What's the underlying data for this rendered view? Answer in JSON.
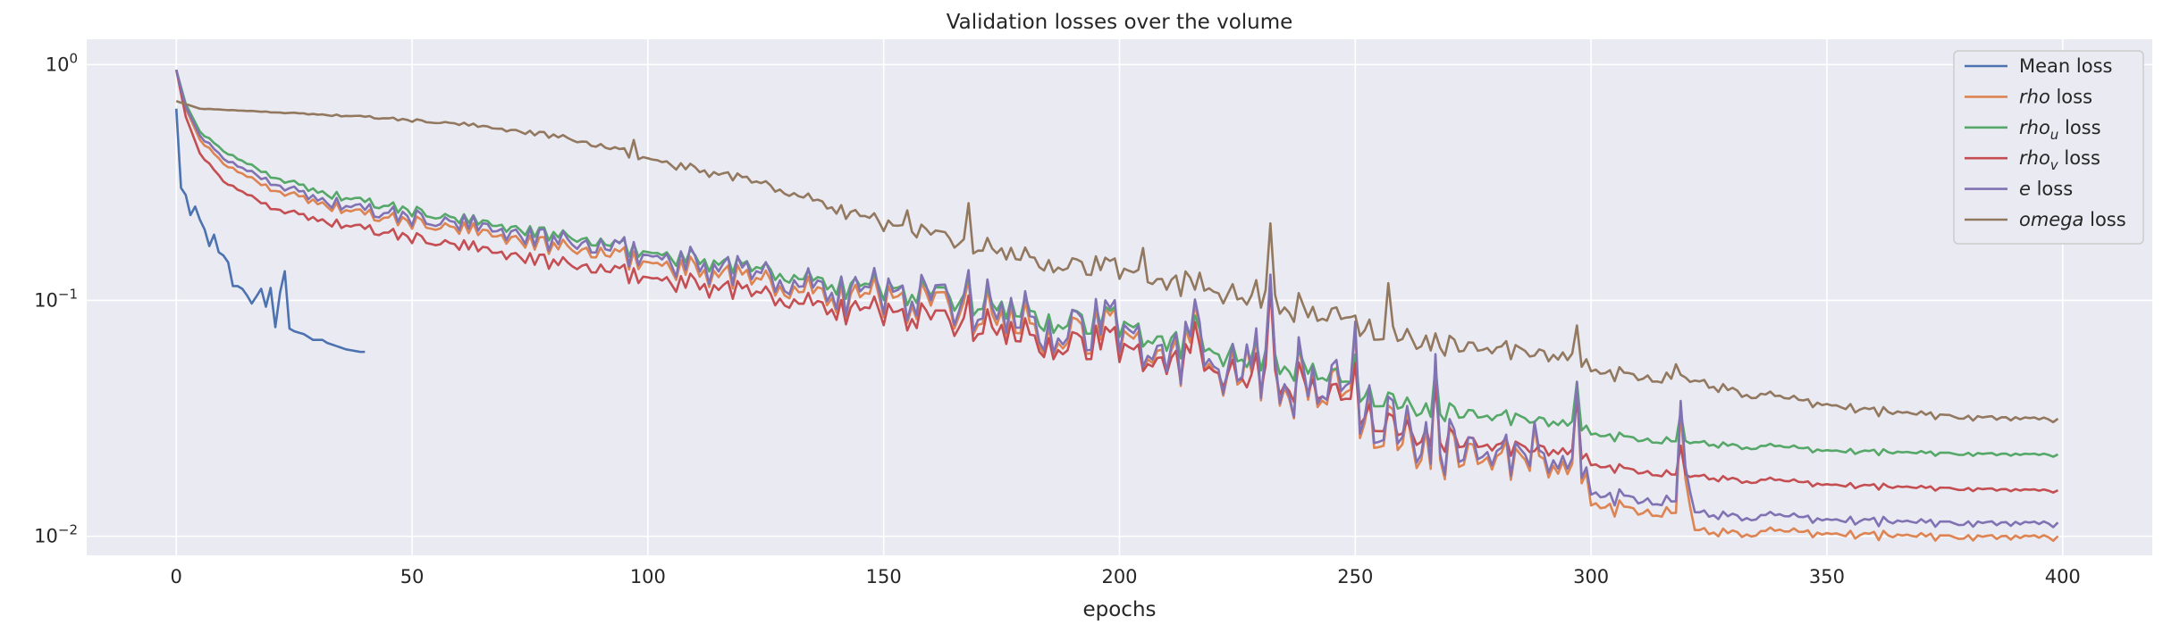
{
  "chart_data": {
    "type": "line",
    "title": "Validation losses over the volume",
    "xlabel": "epochs",
    "ylabel": "",
    "xlim": [
      -19,
      419
    ],
    "ylim": [
      0.0083,
      1.28
    ],
    "yscale": "log",
    "grid": true,
    "legend_position": "top-right",
    "xticks": [
      0,
      50,
      100,
      150,
      200,
      250,
      300,
      350,
      400
    ],
    "xtick_labels": [
      "0",
      "50",
      "100",
      "150",
      "200",
      "250",
      "300",
      "350",
      "400"
    ],
    "ytick_labels": [
      {
        "value": 1,
        "base": "10",
        "exp": "0"
      },
      {
        "value": 0.1,
        "base": "10",
        "exp": "−1"
      },
      {
        "value": 0.01,
        "base": "10",
        "exp": "−2"
      }
    ],
    "series": [
      {
        "name": "Mean loss",
        "color": "#4c72b0",
        "length": 41,
        "points": [
          [
            0,
            0.65
          ],
          [
            1,
            0.3
          ],
          [
            2,
            0.28
          ],
          [
            3,
            0.23
          ],
          [
            4,
            0.25
          ],
          [
            5,
            0.22
          ],
          [
            6,
            0.2
          ],
          [
            7,
            0.17
          ],
          [
            8,
            0.19
          ],
          [
            9,
            0.16
          ],
          [
            10,
            0.155
          ],
          [
            11,
            0.145
          ],
          [
            12,
            0.115
          ],
          [
            13,
            0.115
          ],
          [
            14,
            0.112
          ],
          [
            15,
            0.105
          ],
          [
            16,
            0.097
          ],
          [
            17,
            0.104
          ],
          [
            18,
            0.112
          ],
          [
            19,
            0.094
          ],
          [
            20,
            0.113
          ],
          [
            21,
            0.077
          ],
          [
            22,
            0.108
          ],
          [
            23,
            0.133
          ],
          [
            24,
            0.076
          ],
          [
            25,
            0.074
          ],
          [
            26,
            0.073
          ],
          [
            27,
            0.072
          ],
          [
            28,
            0.07
          ],
          [
            29,
            0.068
          ],
          [
            30,
            0.068
          ],
          [
            31,
            0.068
          ],
          [
            32,
            0.066
          ],
          [
            33,
            0.065
          ],
          [
            34,
            0.064
          ],
          [
            35,
            0.063
          ],
          [
            36,
            0.062
          ],
          [
            37,
            0.0615
          ],
          [
            38,
            0.061
          ],
          [
            39,
            0.0605
          ],
          [
            40,
            0.0605
          ]
        ]
      },
      {
        "name": "rho",
        "name_italic": "rho",
        "name_suffix": " loss",
        "color": "#dd8452",
        "points": [
          [
            0,
            0.95
          ],
          [
            2,
            0.65
          ],
          [
            5,
            0.48
          ],
          [
            10,
            0.38
          ],
          [
            20,
            0.3
          ],
          [
            30,
            0.26
          ],
          [
            40,
            0.23
          ],
          [
            60,
            0.2
          ],
          [
            80,
            0.17
          ],
          [
            100,
            0.145
          ],
          [
            120,
            0.125
          ],
          [
            140,
            0.108
          ],
          [
            160,
            0.095
          ],
          [
            180,
            0.082
          ],
          [
            200,
            0.072
          ],
          [
            220,
            0.057
          ],
          [
            240,
            0.044
          ],
          [
            260,
            0.026
          ],
          [
            280,
            0.021
          ],
          [
            299,
            0.018
          ],
          [
            300,
            0.0135
          ],
          [
            318,
            0.0125
          ],
          [
            319,
            0.022
          ],
          [
            322,
            0.0105
          ],
          [
            350,
            0.0102
          ],
          [
            399,
            0.0098
          ]
        ],
        "var_amp": [
          [
            0,
            0.0
          ],
          [
            30,
            0.06
          ],
          [
            100,
            0.12
          ],
          [
            160,
            0.32
          ],
          [
            200,
            0.38
          ],
          [
            260,
            0.45
          ],
          [
            300,
            0.1
          ],
          [
            320,
            0.06
          ],
          [
            400,
            0.04
          ]
        ],
        "spikes": [
          [
            168,
            1.4
          ],
          [
            216,
            1.9
          ],
          [
            227,
            1.6
          ],
          [
            232,
            2.9
          ],
          [
            250,
            1.7
          ],
          [
            267,
            1.8
          ],
          [
            288,
            1.5
          ],
          [
            297,
            2.2
          ],
          [
            319,
            1.5
          ]
        ]
      },
      {
        "name": "rho_u",
        "name_italic": "rho",
        "name_sub": "u",
        "name_suffix": " loss",
        "color": "#55a868",
        "points": [
          [
            0,
            0.95
          ],
          [
            2,
            0.68
          ],
          [
            5,
            0.52
          ],
          [
            10,
            0.43
          ],
          [
            20,
            0.34
          ],
          [
            30,
            0.29
          ],
          [
            40,
            0.26
          ],
          [
            60,
            0.22
          ],
          [
            80,
            0.19
          ],
          [
            100,
            0.16
          ],
          [
            120,
            0.14
          ],
          [
            140,
            0.12
          ],
          [
            160,
            0.105
          ],
          [
            180,
            0.092
          ],
          [
            200,
            0.08
          ],
          [
            220,
            0.064
          ],
          [
            240,
            0.052
          ],
          [
            250,
            0.041
          ],
          [
            260,
            0.036
          ],
          [
            280,
            0.032
          ],
          [
            299,
            0.029
          ],
          [
            300,
            0.027
          ],
          [
            320,
            0.025
          ],
          [
            350,
            0.023
          ],
          [
            399,
            0.022
          ]
        ],
        "var_amp": [
          [
            0,
            0.0
          ],
          [
            30,
            0.05
          ],
          [
            100,
            0.09
          ],
          [
            160,
            0.2
          ],
          [
            200,
            0.24
          ],
          [
            260,
            0.15
          ],
          [
            300,
            0.05
          ],
          [
            400,
            0.02
          ]
        ],
        "spikes": [
          [
            168,
            1.3
          ],
          [
            216,
            1.4
          ],
          [
            232,
            2.2
          ],
          [
            250,
            1.3
          ],
          [
            267,
            1.4
          ],
          [
            297,
            1.5
          ],
          [
            319,
            1.3
          ]
        ]
      },
      {
        "name": "rho_v",
        "name_italic": "rho",
        "name_sub": "v",
        "name_suffix": " loss",
        "color": "#c44e52",
        "points": [
          [
            0,
            0.95
          ],
          [
            2,
            0.6
          ],
          [
            5,
            0.42
          ],
          [
            10,
            0.32
          ],
          [
            20,
            0.25
          ],
          [
            30,
            0.22
          ],
          [
            40,
            0.2
          ],
          [
            60,
            0.17
          ],
          [
            80,
            0.145
          ],
          [
            100,
            0.125
          ],
          [
            120,
            0.11
          ],
          [
            140,
            0.095
          ],
          [
            160,
            0.083
          ],
          [
            180,
            0.073
          ],
          [
            200,
            0.064
          ],
          [
            220,
            0.054
          ],
          [
            240,
            0.044
          ],
          [
            250,
            0.034
          ],
          [
            260,
            0.028
          ],
          [
            280,
            0.024
          ],
          [
            299,
            0.022
          ],
          [
            300,
            0.02
          ],
          [
            320,
            0.018
          ],
          [
            350,
            0.0165
          ],
          [
            399,
            0.0155
          ]
        ],
        "var_amp": [
          [
            0,
            0.0
          ],
          [
            30,
            0.05
          ],
          [
            100,
            0.1
          ],
          [
            160,
            0.22
          ],
          [
            200,
            0.28
          ],
          [
            260,
            0.2
          ],
          [
            300,
            0.05
          ],
          [
            400,
            0.02
          ]
        ],
        "spikes": [
          [
            168,
            1.35
          ],
          [
            216,
            1.6
          ],
          [
            232,
            2.6
          ],
          [
            250,
            1.4
          ],
          [
            267,
            1.5
          ],
          [
            297,
            1.7
          ],
          [
            319,
            1.3
          ]
        ]
      },
      {
        "name": "e",
        "name_italic": "e",
        "name_suffix": " loss",
        "color": "#8172b3",
        "points": [
          [
            0,
            0.95
          ],
          [
            2,
            0.66
          ],
          [
            5,
            0.5
          ],
          [
            10,
            0.4
          ],
          [
            20,
            0.32
          ],
          [
            30,
            0.27
          ],
          [
            40,
            0.24
          ],
          [
            60,
            0.21
          ],
          [
            80,
            0.18
          ],
          [
            100,
            0.155
          ],
          [
            120,
            0.133
          ],
          [
            140,
            0.115
          ],
          [
            160,
            0.1
          ],
          [
            180,
            0.088
          ],
          [
            200,
            0.076
          ],
          [
            220,
            0.06
          ],
          [
            240,
            0.046
          ],
          [
            260,
            0.028
          ],
          [
            280,
            0.022
          ],
          [
            299,
            0.019
          ],
          [
            300,
            0.015
          ],
          [
            318,
            0.014
          ],
          [
            319,
            0.024
          ],
          [
            322,
            0.0125
          ],
          [
            350,
            0.0117
          ],
          [
            399,
            0.0112
          ]
        ],
        "var_amp": [
          [
            0,
            0.0
          ],
          [
            30,
            0.07
          ],
          [
            100,
            0.16
          ],
          [
            160,
            0.36
          ],
          [
            200,
            0.42
          ],
          [
            260,
            0.48
          ],
          [
            300,
            0.1
          ],
          [
            320,
            0.06
          ],
          [
            400,
            0.04
          ]
        ],
        "spikes": [
          [
            168,
            1.45
          ],
          [
            216,
            1.9
          ],
          [
            227,
            1.6
          ],
          [
            232,
            2.9
          ],
          [
            250,
            1.7
          ],
          [
            267,
            1.8
          ],
          [
            288,
            1.5
          ],
          [
            297,
            2.2
          ],
          [
            319,
            1.5
          ]
        ]
      },
      {
        "name": "omega",
        "name_italic": "omega",
        "name_suffix": " loss",
        "color": "#937860",
        "points": [
          [
            0,
            0.7
          ],
          [
            5,
            0.65
          ],
          [
            20,
            0.63
          ],
          [
            40,
            0.6
          ],
          [
            60,
            0.56
          ],
          [
            80,
            0.5
          ],
          [
            90,
            0.45
          ],
          [
            100,
            0.4
          ],
          [
            110,
            0.36
          ],
          [
            120,
            0.33
          ],
          [
            130,
            0.29
          ],
          [
            140,
            0.25
          ],
          [
            150,
            0.21
          ],
          [
            160,
            0.19
          ],
          [
            170,
            0.17
          ],
          [
            180,
            0.155
          ],
          [
            190,
            0.145
          ],
          [
            200,
            0.135
          ],
          [
            210,
            0.125
          ],
          [
            220,
            0.115
          ],
          [
            230,
            0.105
          ],
          [
            240,
            0.09
          ],
          [
            250,
            0.078
          ],
          [
            260,
            0.07
          ],
          [
            270,
            0.065
          ],
          [
            280,
            0.062
          ],
          [
            290,
            0.058
          ],
          [
            299,
            0.055
          ],
          [
            300,
            0.05
          ],
          [
            320,
            0.046
          ],
          [
            340,
            0.038
          ],
          [
            360,
            0.034
          ],
          [
            380,
            0.032
          ],
          [
            399,
            0.031
          ]
        ],
        "var_amp": [
          [
            0,
            0.0
          ],
          [
            60,
            0.02
          ],
          [
            120,
            0.06
          ],
          [
            160,
            0.12
          ],
          [
            220,
            0.18
          ],
          [
            260,
            0.16
          ],
          [
            300,
            0.08
          ],
          [
            400,
            0.03
          ]
        ],
        "spikes": [
          [
            97,
            1.12
          ],
          [
            155,
            1.3
          ],
          [
            168,
            1.5
          ],
          [
            205,
            1.45
          ],
          [
            232,
            2.2
          ],
          [
            257,
            1.5
          ],
          [
            297,
            1.35
          ],
          [
            318,
            1.15
          ]
        ]
      }
    ]
  }
}
